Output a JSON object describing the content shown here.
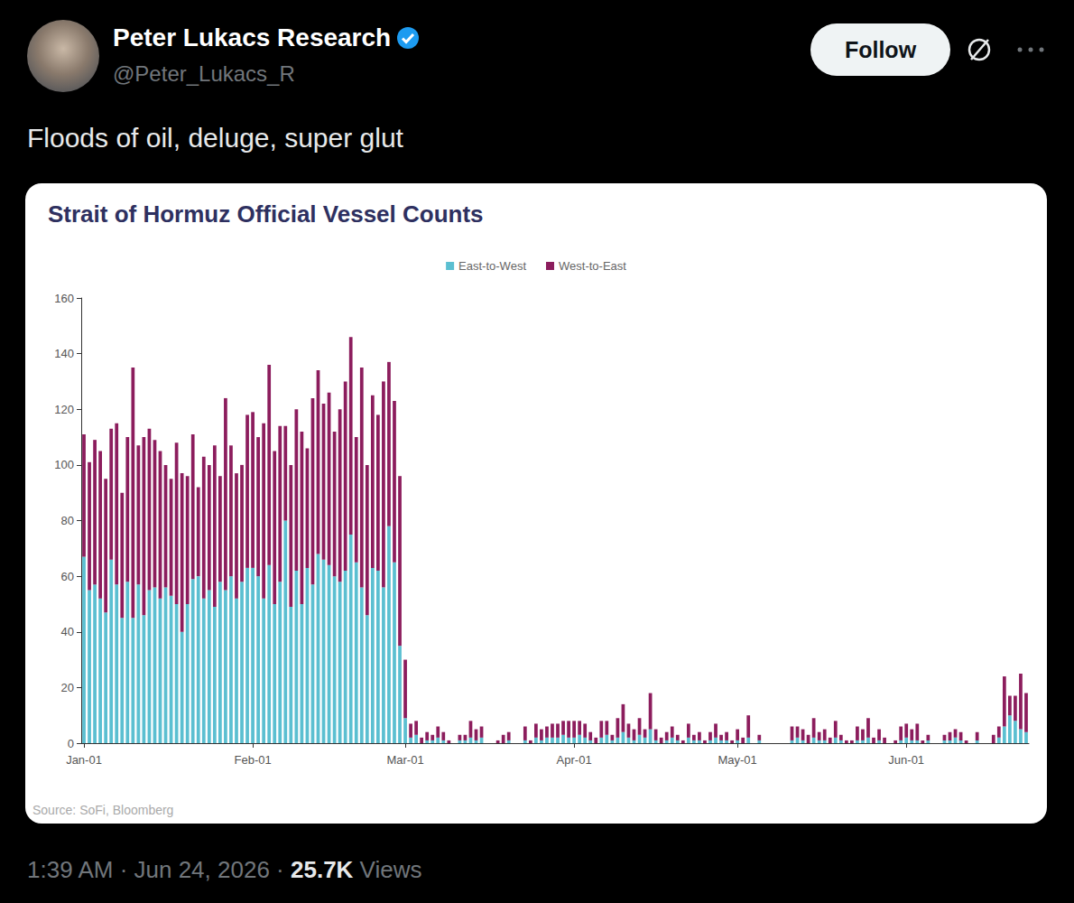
{
  "post": {
    "author": "Peter Lukacs Research",
    "handle": "@Peter_Lukacs_R",
    "button": "Follow",
    "text": "Floods of oil, deluge, super glut",
    "time": "1:39 AM",
    "date": "Jun 24, 2026",
    "separator": "·",
    "views": "25.7K",
    "views_label": "Views"
  },
  "chart_data": {
    "type": "bar",
    "title": "Strait of Hormuz Official Vessel Counts",
    "source": "Source: SoFi, Bloomberg",
    "stacked": true,
    "grid": false,
    "legend": "top",
    "ylim": [
      0,
      160
    ],
    "yticks": [
      0,
      20,
      40,
      60,
      80,
      100,
      120,
      140,
      160
    ],
    "categories": [
      "Jan-01",
      null,
      null,
      null,
      null,
      null,
      null,
      null,
      null,
      null,
      null,
      null,
      null,
      null,
      null,
      null,
      null,
      null,
      null,
      null,
      null,
      null,
      null,
      null,
      null,
      null,
      null,
      null,
      null,
      null,
      null,
      "Feb-01",
      null,
      null,
      null,
      null,
      null,
      null,
      null,
      null,
      null,
      null,
      null,
      null,
      null,
      null,
      null,
      null,
      null,
      null,
      null,
      null,
      null,
      null,
      null,
      null,
      null,
      null,
      null,
      "Mar-01",
      null,
      null,
      null,
      null,
      null,
      null,
      null,
      null,
      null,
      null,
      null,
      null,
      null,
      null,
      null,
      null,
      null,
      null,
      null,
      null,
      null,
      null,
      null,
      null,
      null,
      null,
      null,
      null,
      null,
      null,
      "Apr-01",
      null,
      null,
      null,
      null,
      null,
      null,
      null,
      null,
      null,
      null,
      null,
      null,
      null,
      null,
      null,
      null,
      null,
      null,
      null,
      null,
      null,
      null,
      null,
      null,
      null,
      null,
      null,
      null,
      null,
      "May-01",
      null,
      null,
      null,
      null,
      null,
      null,
      null,
      null,
      null,
      null,
      null,
      null,
      null,
      null,
      null,
      null,
      null,
      null,
      null,
      null,
      null,
      null,
      null,
      null,
      null,
      null,
      null,
      null,
      null,
      null,
      "Jun-01",
      null,
      null,
      null,
      null,
      null,
      null,
      null,
      null,
      null,
      null,
      null,
      null,
      null,
      null,
      null,
      null,
      null,
      null,
      null,
      null,
      null,
      null
    ],
    "series": [
      {
        "name": "East-to-West",
        "color": "#5bbfd1",
        "values": [
          67,
          55,
          57,
          52,
          47,
          66,
          57,
          45,
          58,
          45,
          57,
          46,
          55,
          56,
          52,
          56,
          53,
          50,
          40,
          50,
          59,
          60,
          52,
          55,
          49,
          58,
          55,
          60,
          52,
          58,
          63,
          63,
          60,
          52,
          64,
          50,
          58,
          80,
          49,
          62,
          50,
          63,
          57,
          68,
          66,
          64,
          60,
          58,
          62,
          75,
          65,
          56,
          46,
          63,
          62,
          56,
          78,
          65,
          35,
          9,
          2,
          3,
          0,
          1,
          1,
          2,
          1,
          0,
          0,
          1,
          1,
          2,
          1,
          2,
          0,
          0,
          0,
          0,
          1,
          0,
          0,
          1,
          0,
          2,
          1,
          2,
          2,
          2,
          3,
          2,
          2,
          3,
          2,
          1,
          0,
          2,
          3,
          1,
          2,
          4,
          2,
          1,
          3,
          2,
          5,
          1,
          0,
          1,
          2,
          1,
          0,
          2,
          1,
          1,
          0,
          1,
          2,
          1,
          1,
          0,
          1,
          0,
          2,
          0,
          1,
          0,
          0,
          0,
          0,
          0,
          1,
          2,
          1,
          0,
          2,
          1,
          1,
          0,
          2,
          1,
          0,
          0,
          1,
          1,
          2,
          0,
          1,
          0,
          0,
          0,
          1,
          2,
          1,
          1,
          0,
          1,
          0,
          0,
          1,
          1,
          2,
          1,
          0,
          0,
          1,
          0,
          0,
          0,
          2,
          6,
          10,
          8,
          5,
          4
        ]
      },
      {
        "name": "West-to-East",
        "color": "#8c1d5d",
        "values": [
          44,
          46,
          52,
          53,
          48,
          47,
          58,
          45,
          52,
          90,
          50,
          64,
          58,
          53,
          53,
          44,
          42,
          58,
          57,
          46,
          52,
          32,
          51,
          45,
          58,
          38,
          69,
          47,
          45,
          42,
          55,
          56,
          50,
          63,
          72,
          55,
          56,
          34,
          51,
          58,
          62,
          43,
          67,
          66,
          56,
          62,
          52,
          62,
          68,
          71,
          45,
          79,
          54,
          62,
          56,
          74,
          59,
          58,
          61,
          21,
          5,
          5,
          2,
          3,
          2,
          4,
          3,
          1,
          0,
          2,
          2,
          6,
          4,
          4,
          0,
          0,
          1,
          3,
          3,
          0,
          0,
          5,
          1,
          5,
          4,
          4,
          5,
          5,
          5,
          6,
          6,
          5,
          5,
          3,
          2,
          6,
          5,
          2,
          7,
          10,
          5,
          4,
          6,
          3,
          13,
          4,
          2,
          3,
          4,
          2,
          1,
          5,
          2,
          3,
          1,
          3,
          5,
          2,
          3,
          1,
          4,
          2,
          8,
          0,
          2,
          0,
          0,
          0,
          0,
          0,
          5,
          4,
          4,
          3,
          7,
          3,
          4,
          2,
          6,
          2,
          1,
          1,
          5,
          4,
          7,
          2,
          4,
          2,
          0,
          1,
          5,
          5,
          4,
          6,
          1,
          2,
          0,
          0,
          2,
          3,
          3,
          3,
          1,
          0,
          3,
          0,
          0,
          3,
          4,
          18,
          7,
          9,
          20,
          14
        ]
      }
    ]
  }
}
